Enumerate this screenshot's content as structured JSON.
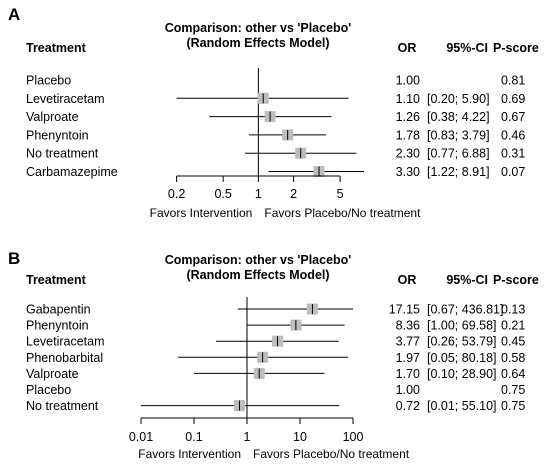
{
  "chart_data": [
    {
      "type": "forest",
      "panel_label": "A",
      "title": "Comparison: other vs 'Placebo'",
      "subtitle": "(Random Effects Model)",
      "headers": {
        "treatment": "Treatment",
        "or": "OR",
        "ci": "95%-CI",
        "pscore": "P-score"
      },
      "rows": [
        {
          "treatment": "Placebo",
          "or": 1.0,
          "lo": null,
          "hi": null,
          "or_text": "1.00",
          "ci_text": "",
          "pscore": "0.81"
        },
        {
          "treatment": "Levetiracetam",
          "or": 1.1,
          "lo": 0.2,
          "hi": 5.9,
          "or_text": "1.10",
          "ci_text": "[0.20; 5.90]",
          "pscore": "0.69"
        },
        {
          "treatment": "Valproate",
          "or": 1.26,
          "lo": 0.38,
          "hi": 4.22,
          "or_text": "1.26",
          "ci_text": "[0.38; 4.22]",
          "pscore": "0.67"
        },
        {
          "treatment": "Phenyntoin",
          "or": 1.78,
          "lo": 0.83,
          "hi": 3.79,
          "or_text": "1.78",
          "ci_text": "[0.83; 3.79]",
          "pscore": "0.46"
        },
        {
          "treatment": "No treatment",
          "or": 2.3,
          "lo": 0.77,
          "hi": 6.88,
          "or_text": "2.30",
          "ci_text": "[0.77; 6.88]",
          "pscore": "0.31"
        },
        {
          "treatment": "Carbamazepime",
          "or": 3.3,
          "lo": 1.22,
          "hi": 8.91,
          "or_text": "3.30",
          "ci_text": "[1.22; 8.91]",
          "pscore": "0.07"
        }
      ],
      "x_scale": "log",
      "xlim": [
        0.15,
        8.0
      ],
      "ticks": [
        0.2,
        0.5,
        1,
        2,
        5
      ],
      "tick_labels": [
        "0.2",
        "0.5",
        "1",
        "2",
        "5"
      ],
      "left_label": "Favors Intervention",
      "right_label": "Favors Placebo/No treatment"
    },
    {
      "type": "forest",
      "panel_label": "B",
      "title": "Comparison: other vs 'Placebo'",
      "subtitle": "(Random Effects Model)",
      "headers": {
        "treatment": "Treatment",
        "or": "OR",
        "ci": "95%-CI",
        "pscore": "P-score"
      },
      "rows": [
        {
          "treatment": "Gabapentin",
          "or": 17.15,
          "lo": 0.67,
          "hi": 436.81,
          "or_text": "17.15",
          "ci_text": "[0.67; 436.81]",
          "pscore": "0.13"
        },
        {
          "treatment": "Phenyntoin",
          "or": 8.36,
          "lo": 1.0,
          "hi": 69.58,
          "or_text": "8.36",
          "ci_text": "[1.00; 69.58]",
          "pscore": "0.21"
        },
        {
          "treatment": "Levetiracetam",
          "or": 3.77,
          "lo": 0.26,
          "hi": 53.79,
          "or_text": "3.77",
          "ci_text": "[0.26; 53.79]",
          "pscore": "0.45"
        },
        {
          "treatment": "Phenobarbital",
          "or": 1.97,
          "lo": 0.05,
          "hi": 80.18,
          "or_text": "1.97",
          "ci_text": "[0.05; 80.18]",
          "pscore": "0.58"
        },
        {
          "treatment": "Valproate",
          "or": 1.7,
          "lo": 0.1,
          "hi": 28.9,
          "or_text": "1.70",
          "ci_text": "[0.10; 28.90]",
          "pscore": "0.64"
        },
        {
          "treatment": "Placebo",
          "or": 1.0,
          "lo": null,
          "hi": null,
          "or_text": "1.00",
          "ci_text": "",
          "pscore": "0.75"
        },
        {
          "treatment": "No treatment",
          "or": 0.72,
          "lo": 0.01,
          "hi": 55.1,
          "or_text": "0.72",
          "ci_text": "[0.01; 55.10]",
          "pscore": "0.75"
        }
      ],
      "x_scale": "log",
      "xlim": [
        0.01,
        100
      ],
      "ticks": [
        0.01,
        0.1,
        1,
        10,
        100
      ],
      "tick_labels": [
        "0.01",
        "0.1",
        "1",
        "10",
        "100"
      ],
      "left_label": "Favors Intervention",
      "right_label": "Favors Placebo/No treatment"
    }
  ]
}
